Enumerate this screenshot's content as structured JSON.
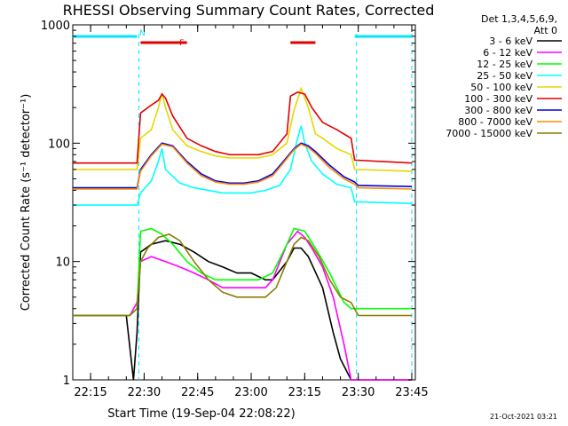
{
  "chart_data": {
    "type": "line",
    "title": "RHESSI Observing Summary Count Rates, Corrected",
    "xlabel": "Start Time (19-Sep-04 22:08:22)",
    "ylabel": "Corrected Count Rate (s⁻¹ detector⁻¹)",
    "ylog": true,
    "ylim": [
      1,
      1000
    ],
    "xlim_minutes_after_22_08": [
      2,
      98
    ],
    "xticks": [
      {
        "label": "22:15",
        "t": 7
      },
      {
        "label": "22:30",
        "t": 22
      },
      {
        "label": "22:45",
        "t": 37
      },
      {
        "label": "23:00",
        "t": 52
      },
      {
        "label": "23:15",
        "t": 67
      },
      {
        "label": "23:30",
        "t": 82
      },
      {
        "label": "23:45",
        "t": 97
      }
    ],
    "yticks": [
      {
        "label": "1",
        "v": 1
      },
      {
        "label": "10",
        "v": 10
      },
      {
        "label": "100",
        "v": 100
      },
      {
        "label": "1000",
        "v": 1000
      }
    ],
    "detector_header": [
      "Det 1,3,4,5,6,9,",
      "Att 0"
    ],
    "timestamp": "21-Oct-2021 03:21",
    "flag_bars": [
      {
        "label": "N",
        "color": "#00e5ff",
        "segments": [
          [
            2,
            20
          ],
          [
            81,
            97
          ]
        ]
      },
      {
        "label": "F",
        "color": "#e00000",
        "segments": [
          [
            21,
            34
          ],
          [
            63,
            70
          ]
        ]
      }
    ],
    "night_boundaries": [
      20.5,
      81.5,
      97
    ],
    "series": [
      {
        "name": "3 - 6 keV",
        "color": "#000000",
        "points": [
          [
            2,
            3.5
          ],
          [
            17,
            3.5
          ],
          [
            19,
            0.9
          ],
          [
            20,
            2.5
          ],
          [
            21,
            12
          ],
          [
            24,
            14
          ],
          [
            28,
            15
          ],
          [
            32,
            14
          ],
          [
            36,
            12
          ],
          [
            40,
            10
          ],
          [
            44,
            9
          ],
          [
            48,
            8
          ],
          [
            52,
            8
          ],
          [
            56,
            7
          ],
          [
            58,
            7
          ],
          [
            62,
            10
          ],
          [
            64,
            13
          ],
          [
            66,
            13
          ],
          [
            68,
            11
          ],
          [
            72,
            6
          ],
          [
            75,
            2.5
          ],
          [
            77,
            1.5
          ],
          [
            80,
            0.8
          ],
          [
            82,
            0.8
          ],
          [
            97,
            0.8
          ]
        ]
      },
      {
        "name": "6 - 12 keV",
        "color": "#ff00ff",
        "points": [
          [
            2,
            3.5
          ],
          [
            18,
            3.5
          ],
          [
            20,
            4.5
          ],
          [
            21,
            10
          ],
          [
            24,
            11
          ],
          [
            28,
            10
          ],
          [
            32,
            9
          ],
          [
            36,
            8
          ],
          [
            40,
            7
          ],
          [
            44,
            6
          ],
          [
            48,
            6
          ],
          [
            52,
            6
          ],
          [
            56,
            6
          ],
          [
            58,
            7
          ],
          [
            62,
            14
          ],
          [
            65,
            18
          ],
          [
            67,
            16
          ],
          [
            69,
            13
          ],
          [
            72,
            9
          ],
          [
            75,
            5
          ],
          [
            78,
            2
          ],
          [
            80,
            0.8
          ],
          [
            82,
            0.8
          ],
          [
            97,
            0.8
          ]
        ]
      },
      {
        "name": "12 - 25 keV",
        "color": "#00ff00",
        "points": [
          [
            2,
            3.5
          ],
          [
            18,
            3.5
          ],
          [
            20,
            4
          ],
          [
            21,
            18
          ],
          [
            24,
            19
          ],
          [
            27,
            17
          ],
          [
            30,
            14
          ],
          [
            34,
            10
          ],
          [
            38,
            8
          ],
          [
            42,
            7
          ],
          [
            46,
            7
          ],
          [
            50,
            7
          ],
          [
            54,
            7
          ],
          [
            58,
            8
          ],
          [
            62,
            14
          ],
          [
            64,
            19
          ],
          [
            67,
            18
          ],
          [
            70,
            13
          ],
          [
            74,
            8
          ],
          [
            78,
            4.5
          ],
          [
            80,
            4
          ],
          [
            82,
            4
          ],
          [
            97,
            4
          ]
        ]
      },
      {
        "name": "25 - 50 keV",
        "color": "#00ffff",
        "points": [
          [
            2,
            30
          ],
          [
            20,
            30
          ],
          [
            21,
            38
          ],
          [
            24,
            48
          ],
          [
            26,
            70
          ],
          [
            27,
            90
          ],
          [
            28,
            60
          ],
          [
            32,
            46
          ],
          [
            36,
            42
          ],
          [
            40,
            40
          ],
          [
            44,
            38
          ],
          [
            48,
            38
          ],
          [
            52,
            38
          ],
          [
            56,
            40
          ],
          [
            60,
            44
          ],
          [
            63,
            60
          ],
          [
            65,
            110
          ],
          [
            66,
            140
          ],
          [
            67,
            100
          ],
          [
            69,
            70
          ],
          [
            72,
            55
          ],
          [
            76,
            45
          ],
          [
            80,
            42
          ],
          [
            81,
            32
          ],
          [
            97,
            31
          ]
        ]
      },
      {
        "name": "50 - 100 keV",
        "color": "#e6d800",
        "points": [
          [
            2,
            60
          ],
          [
            20,
            60
          ],
          [
            21,
            110
          ],
          [
            24,
            130
          ],
          [
            26,
            200
          ],
          [
            27,
            265
          ],
          [
            28,
            200
          ],
          [
            30,
            130
          ],
          [
            34,
            95
          ],
          [
            38,
            85
          ],
          [
            42,
            78
          ],
          [
            46,
            75
          ],
          [
            50,
            75
          ],
          [
            54,
            75
          ],
          [
            58,
            80
          ],
          [
            62,
            100
          ],
          [
            64,
            190
          ],
          [
            66,
            290
          ],
          [
            68,
            200
          ],
          [
            70,
            120
          ],
          [
            72,
            110
          ],
          [
            76,
            90
          ],
          [
            80,
            80
          ],
          [
            81,
            60
          ],
          [
            97,
            58
          ]
        ]
      },
      {
        "name": "100 - 300 keV",
        "color": "#e00000",
        "points": [
          [
            2,
            68
          ],
          [
            20,
            68
          ],
          [
            21,
            180
          ],
          [
            24,
            210
          ],
          [
            26,
            230
          ],
          [
            27,
            260
          ],
          [
            28,
            240
          ],
          [
            30,
            170
          ],
          [
            34,
            110
          ],
          [
            38,
            95
          ],
          [
            42,
            85
          ],
          [
            46,
            80
          ],
          [
            50,
            80
          ],
          [
            54,
            80
          ],
          [
            58,
            85
          ],
          [
            62,
            120
          ],
          [
            63,
            250
          ],
          [
            65,
            270
          ],
          [
            67,
            260
          ],
          [
            69,
            200
          ],
          [
            72,
            150
          ],
          [
            76,
            130
          ],
          [
            80,
            110
          ],
          [
            81,
            72
          ],
          [
            97,
            68
          ]
        ]
      },
      {
        "name": "300 - 800 keV",
        "color": "#0000e0",
        "points": [
          [
            2,
            42
          ],
          [
            20,
            42
          ],
          [
            21,
            60
          ],
          [
            24,
            80
          ],
          [
            27,
            100
          ],
          [
            30,
            95
          ],
          [
            34,
            70
          ],
          [
            38,
            55
          ],
          [
            42,
            48
          ],
          [
            46,
            46
          ],
          [
            50,
            46
          ],
          [
            54,
            48
          ],
          [
            58,
            55
          ],
          [
            61,
            70
          ],
          [
            64,
            90
          ],
          [
            66,
            100
          ],
          [
            68,
            95
          ],
          [
            70,
            85
          ],
          [
            74,
            65
          ],
          [
            78,
            52
          ],
          [
            81,
            47
          ],
          [
            82,
            44
          ],
          [
            97,
            43
          ]
        ]
      },
      {
        "name": "800 - 7000 keV",
        "color": "#ff8c00",
        "points": [
          [
            2,
            41
          ],
          [
            20,
            41
          ],
          [
            21,
            58
          ],
          [
            24,
            78
          ],
          [
            27,
            98
          ],
          [
            30,
            93
          ],
          [
            34,
            68
          ],
          [
            38,
            53
          ],
          [
            42,
            47
          ],
          [
            46,
            45
          ],
          [
            50,
            45
          ],
          [
            54,
            47
          ],
          [
            58,
            53
          ],
          [
            61,
            68
          ],
          [
            64,
            88
          ],
          [
            66,
            98
          ],
          [
            68,
            92
          ],
          [
            70,
            82
          ],
          [
            74,
            62
          ],
          [
            78,
            50
          ],
          [
            81,
            45
          ],
          [
            82,
            42
          ],
          [
            97,
            41
          ]
        ]
      },
      {
        "name": "7000 - 15000 keV",
        "color": "#8b7d00",
        "points": [
          [
            2,
            3.5
          ],
          [
            18,
            3.5
          ],
          [
            20,
            4
          ],
          [
            21,
            10
          ],
          [
            23,
            13
          ],
          [
            26,
            16
          ],
          [
            29,
            17
          ],
          [
            32,
            15
          ],
          [
            36,
            10
          ],
          [
            40,
            7
          ],
          [
            44,
            5.5
          ],
          [
            48,
            5
          ],
          [
            52,
            5
          ],
          [
            56,
            5
          ],
          [
            59,
            6
          ],
          [
            62,
            10
          ],
          [
            64,
            14
          ],
          [
            66,
            16
          ],
          [
            68,
            15
          ],
          [
            71,
            11
          ],
          [
            74,
            7
          ],
          [
            77,
            5
          ],
          [
            80,
            4.5
          ],
          [
            82,
            3.5
          ],
          [
            97,
            3.5
          ]
        ]
      }
    ]
  }
}
